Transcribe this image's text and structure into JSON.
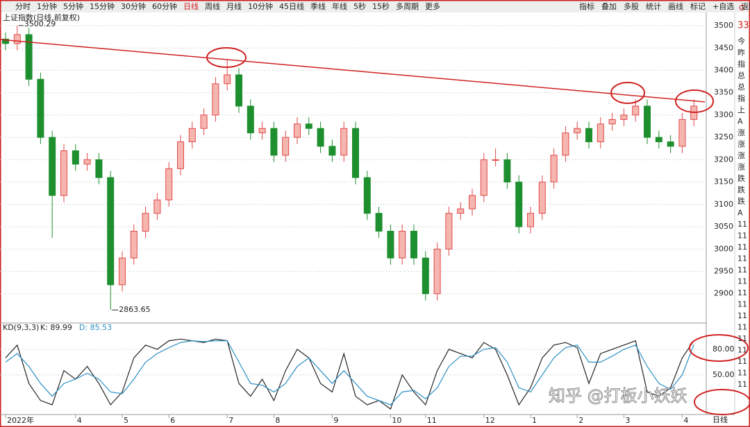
{
  "toolbar": {
    "left": [
      "分时",
      "1分钟",
      "5分钟",
      "15分钟",
      "30分钟",
      "60分钟",
      "日线",
      "周线",
      "月线",
      "10分钟",
      "45日线",
      "季线",
      "年线",
      "5秒",
      "15秒",
      "多周期",
      "更多"
    ],
    "right": [
      "指标",
      "叠加",
      "多股",
      "统计",
      "画线",
      "标记",
      "+自选",
      "返回"
    ],
    "active": "日线"
  },
  "chart_data": {
    "type": "candlestick",
    "title": "上证指数(日线,前复权)",
    "categories": [
      "2022年",
      null,
      null,
      null,
      null,
      null,
      "4",
      null,
      null,
      null,
      "5",
      null,
      null,
      null,
      "6",
      null,
      null,
      null,
      null,
      "7",
      null,
      null,
      null,
      "8",
      null,
      null,
      null,
      null,
      "9",
      null,
      null,
      null,
      null,
      "10",
      null,
      null,
      "11",
      null,
      null,
      null,
      null,
      "12",
      null,
      null,
      null,
      "1",
      null,
      null,
      null,
      "2",
      null,
      null,
      null,
      "3",
      null,
      null,
      null,
      null,
      "4",
      null
    ],
    "open": [
      3470,
      3460,
      3480,
      3380,
      3250,
      3120,
      3220,
      3190,
      3200,
      3160,
      2920,
      2980,
      3040,
      3080,
      3110,
      3180,
      3240,
      3270,
      3300,
      3370,
      3390,
      3320,
      3260,
      3270,
      3210,
      3250,
      3280,
      3270,
      3230,
      3210,
      3270,
      3160,
      3080,
      3040,
      2980,
      3040,
      2980,
      2900,
      3000,
      3080,
      3090,
      3120,
      3200,
      3200,
      3150,
      3050,
      3080,
      3150,
      3210,
      3260,
      3270,
      3240,
      3280,
      3290,
      3300,
      3320,
      3250,
      3240,
      3230,
      3290
    ],
    "high": [
      3485,
      3500.29,
      3495,
      3395,
      3265,
      3235,
      3235,
      3215,
      3215,
      3175,
      2995,
      3055,
      3095,
      3125,
      3195,
      3255,
      3285,
      3315,
      3385,
      3425,
      3405,
      3335,
      3285,
      3285,
      3265,
      3295,
      3295,
      3285,
      3245,
      3285,
      3285,
      3175,
      3095,
      3055,
      3055,
      3055,
      2995,
      3015,
      3095,
      3105,
      3135,
      3215,
      3225,
      3215,
      3165,
      3095,
      3165,
      3225,
      3275,
      3285,
      3285,
      3295,
      3305,
      3315,
      3335,
      3335,
      3265,
      3255,
      3305,
      3335
    ],
    "low": [
      3445,
      3445,
      3365,
      3235,
      3025,
      3105,
      3175,
      3175,
      3145,
      2863.65,
      2905,
      2965,
      3025,
      3065,
      3095,
      3165,
      3225,
      3255,
      3285,
      3355,
      3305,
      3245,
      3245,
      3195,
      3195,
      3235,
      3255,
      3215,
      3195,
      3195,
      3145,
      3065,
      3025,
      2965,
      2965,
      2965,
      2885,
      2885,
      2985,
      3065,
      3075,
      3105,
      3185,
      3135,
      3035,
      3035,
      3065,
      3135,
      3195,
      3245,
      3225,
      3225,
      3265,
      3275,
      3285,
      3235,
      3225,
      3215,
      3215,
      3275
    ],
    "close": [
      3460,
      3480,
      3380,
      3250,
      3120,
      3220,
      3190,
      3200,
      3160,
      2920,
      2980,
      3040,
      3080,
      3110,
      3180,
      3240,
      3270,
      3300,
      3370,
      3390,
      3320,
      3260,
      3270,
      3210,
      3250,
      3280,
      3270,
      3230,
      3210,
      3270,
      3160,
      3080,
      3040,
      2980,
      3040,
      2980,
      2900,
      3000,
      3080,
      3090,
      3120,
      3200,
      3200,
      3150,
      3050,
      3080,
      3150,
      3210,
      3260,
      3270,
      3240,
      3280,
      3290,
      3300,
      3320,
      3250,
      3240,
      3230,
      3290,
      3320
    ],
    "up_color": "#e04848",
    "down_color": "#1d8f2e",
    "ylim": [
      2836,
      3514
    ],
    "yticks": [
      2900,
      2950,
      3000,
      3050,
      3100,
      3150,
      3200,
      3250,
      3300,
      3350,
      3400,
      3450,
      3500
    ],
    "grid": true,
    "annotations": [
      "3500.29",
      "2863.65"
    ],
    "indicator": {
      "type": "line",
      "title": "KD(9,3,3)",
      "ylim": [
        2,
        110
      ],
      "yticks": [
        {
          "value": 50,
          "label": "50.00"
        },
        {
          "value": 80,
          "label": "80.00"
        }
      ],
      "series": [
        {
          "name": "K: 89.99",
          "color": "#222222",
          "values": [
            70,
            85,
            40,
            20,
            15,
            55,
            45,
            60,
            40,
            15,
            30,
            70,
            85,
            80,
            90,
            92,
            90,
            88,
            92,
            90,
            40,
            25,
            45,
            20,
            55,
            80,
            70,
            40,
            30,
            75,
            25,
            15,
            20,
            10,
            50,
            30,
            15,
            55,
            80,
            75,
            70,
            88,
            80,
            50,
            15,
            35,
            70,
            85,
            88,
            82,
            40,
            75,
            80,
            85,
            90,
            30,
            25,
            35,
            70,
            89.99
          ]
        },
        {
          "name": "D: 85.53",
          "color": "#2a8fc4",
          "values": [
            65,
            75,
            60,
            40,
            25,
            40,
            45,
            52,
            45,
            30,
            28,
            45,
            65,
            75,
            82,
            88,
            90,
            89,
            90,
            90,
            65,
            40,
            38,
            30,
            40,
            60,
            70,
            55,
            40,
            55,
            40,
            25,
            20,
            15,
            30,
            32,
            22,
            35,
            60,
            72,
            72,
            80,
            82,
            65,
            35,
            30,
            50,
            70,
            82,
            85,
            65,
            65,
            72,
            80,
            85,
            60,
            40,
            33,
            50,
            85.53
          ]
        }
      ]
    }
  },
  "side_panel": {
    "top": "33",
    "corner": "G",
    "rows": [
      "今",
      "昨",
      "指",
      "总",
      "总",
      "指",
      "上",
      "A",
      "涨",
      "涨",
      "涨",
      "涨",
      "跌",
      "跌",
      "跌",
      "A",
      "11",
      "11",
      "11",
      "11",
      "11",
      "11",
      "11",
      "11",
      "11",
      "11",
      "11",
      "11",
      "11",
      "11",
      "11"
    ],
    "period": "日线"
  },
  "watermark": "知乎 @打板小妖妖"
}
